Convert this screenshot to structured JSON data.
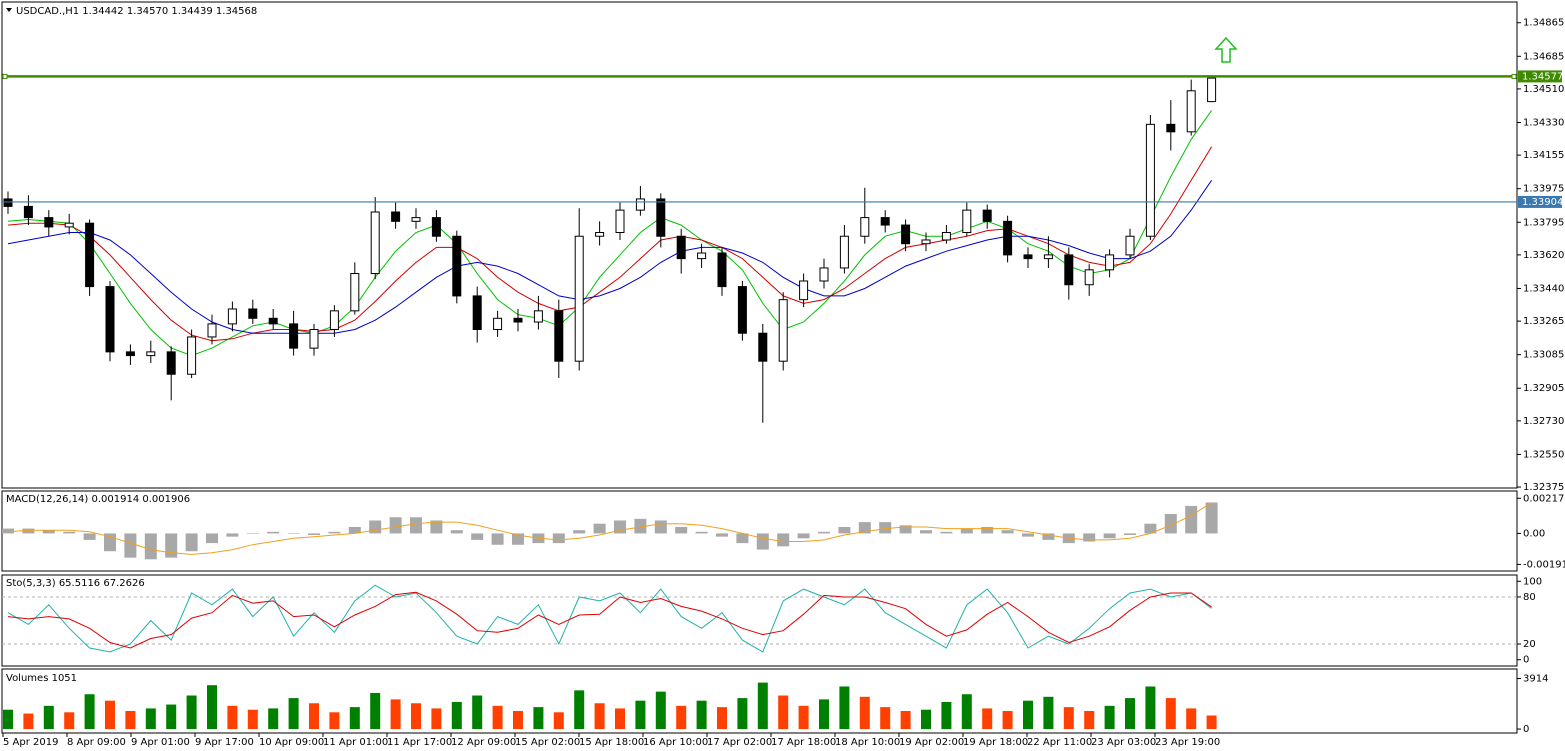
{
  "chart_data": [
    {
      "type": "candlestick",
      "title": "USDCAD.,H1  1.34442 1.34570 1.34439 1.34568",
      "x_labels": [
        "5 Apr 2019",
        "8 Apr 09:00",
        "9 Apr 01:00",
        "9 Apr 17:00",
        "10 Apr 09:00",
        "11 Apr 01:00",
        "11 Apr 17:00",
        "12 Apr 09:00",
        "15 Apr 02:00",
        "15 Apr 18:00",
        "16 Apr 10:00",
        "17 Apr 02:00",
        "17 Apr 18:00",
        "18 Apr 10:00",
        "19 Apr 02:00",
        "19 Apr 18:00",
        "22 Apr 11:00",
        "23 Apr 03:00",
        "23 Apr 19:00"
      ],
      "open": [
        1.3392,
        1.3388,
        1.3382,
        1.3377,
        1.3379,
        1.3345,
        1.331,
        1.3308,
        1.331,
        1.3298,
        1.3318,
        1.3325,
        1.3333,
        1.3328,
        1.3325,
        1.3312,
        1.3322,
        1.3332,
        1.3352,
        1.3385,
        1.338,
        1.3382,
        1.3372,
        1.334,
        1.3322,
        1.3328,
        1.3326,
        1.3332,
        1.3305,
        1.3372,
        1.3374,
        1.3386,
        1.3392,
        1.3372,
        1.336,
        1.3363,
        1.3345,
        1.332,
        1.3305,
        1.3338,
        1.3348,
        1.3355,
        1.3372,
        1.3382,
        1.3378,
        1.3368,
        1.337,
        1.3374,
        1.3386,
        1.338,
        1.3362,
        1.336,
        1.3362,
        1.3346,
        1.3354,
        1.3362,
        1.3372,
        1.3432,
        1.3428,
        1.34442
      ],
      "high": [
        1.3396,
        1.3394,
        1.3386,
        1.3384,
        1.3381,
        1.3348,
        1.3314,
        1.3316,
        1.3313,
        1.3322,
        1.333,
        1.3337,
        1.3338,
        1.3333,
        1.3332,
        1.3325,
        1.3335,
        1.3358,
        1.3393,
        1.339,
        1.3387,
        1.3386,
        1.3375,
        1.3345,
        1.3332,
        1.3333,
        1.334,
        1.3338,
        1.3387,
        1.338,
        1.339,
        1.3399,
        1.3395,
        1.3376,
        1.3368,
        1.3366,
        1.3348,
        1.3325,
        1.3342,
        1.3352,
        1.336,
        1.3378,
        1.3398,
        1.3386,
        1.3381,
        1.3374,
        1.3378,
        1.339,
        1.3389,
        1.3383,
        1.3366,
        1.3372,
        1.3366,
        1.3357,
        1.3365,
        1.3376,
        1.3437,
        1.3445,
        1.3456,
        1.3457
      ],
      "low": [
        1.3384,
        1.3378,
        1.3372,
        1.3373,
        1.334,
        1.3305,
        1.3303,
        1.3304,
        1.3284,
        1.3296,
        1.3314,
        1.3321,
        1.3325,
        1.3322,
        1.3308,
        1.3308,
        1.3318,
        1.333,
        1.3349,
        1.3376,
        1.3376,
        1.3369,
        1.3336,
        1.3315,
        1.3318,
        1.3321,
        1.3322,
        1.3296,
        1.33,
        1.3367,
        1.337,
        1.3383,
        1.3366,
        1.3352,
        1.3355,
        1.334,
        1.3316,
        1.3272,
        1.33,
        1.3334,
        1.3344,
        1.3352,
        1.3368,
        1.3374,
        1.3364,
        1.3364,
        1.3368,
        1.3372,
        1.3376,
        1.3358,
        1.3355,
        1.3355,
        1.3338,
        1.334,
        1.335,
        1.336,
        1.337,
        1.3418,
        1.3426,
        1.34439
      ],
      "close": [
        1.3388,
        1.3382,
        1.3377,
        1.3379,
        1.3345,
        1.331,
        1.3308,
        1.331,
        1.3298,
        1.3318,
        1.3325,
        1.3333,
        1.3328,
        1.3325,
        1.3312,
        1.3322,
        1.3332,
        1.3352,
        1.3385,
        1.338,
        1.3382,
        1.3372,
        1.334,
        1.3322,
        1.3328,
        1.3326,
        1.3332,
        1.3305,
        1.3372,
        1.3374,
        1.3386,
        1.3392,
        1.3372,
        1.336,
        1.3363,
        1.3345,
        1.332,
        1.3305,
        1.3338,
        1.3348,
        1.3355,
        1.3372,
        1.3382,
        1.3378,
        1.3368,
        1.337,
        1.3374,
        1.3386,
        1.338,
        1.3362,
        1.336,
        1.3362,
        1.3346,
        1.3354,
        1.3362,
        1.3372,
        1.3432,
        1.3428,
        1.345,
        1.34568
      ],
      "up_color": "#ffffff",
      "down_color": "#000000",
      "series": [
        {
          "color": "#00c000",
          "values": [
            1.338,
            1.3381,
            1.338,
            1.3379,
            1.3368,
            1.3352,
            1.3336,
            1.3322,
            1.3312,
            1.3308,
            1.3312,
            1.3318,
            1.3324,
            1.3326,
            1.3322,
            1.332,
            1.3324,
            1.3334,
            1.335,
            1.3364,
            1.3374,
            1.3378,
            1.3368,
            1.3352,
            1.3338,
            1.333,
            1.3328,
            1.3324,
            1.3334,
            1.335,
            1.3362,
            1.3374,
            1.3382,
            1.3378,
            1.337,
            1.3364,
            1.3354,
            1.3336,
            1.3322,
            1.3326,
            1.3336,
            1.3348,
            1.3362,
            1.3372,
            1.3375,
            1.3372,
            1.3372,
            1.3376,
            1.338,
            1.3376,
            1.3368,
            1.3364,
            1.3356,
            1.3352,
            1.3354,
            1.336,
            1.3382,
            1.3404,
            1.3424,
            1.34395
          ]
        },
        {
          "color": "#d00000",
          "values": [
            1.3378,
            1.3379,
            1.3379,
            1.3378,
            1.3372,
            1.3362,
            1.335,
            1.3338,
            1.3327,
            1.3319,
            1.3316,
            1.3317,
            1.332,
            1.3322,
            1.3322,
            1.3321,
            1.3322,
            1.3327,
            1.3337,
            1.3348,
            1.3358,
            1.3366,
            1.3366,
            1.336,
            1.335,
            1.3342,
            1.3336,
            1.3332,
            1.3334,
            1.3342,
            1.335,
            1.336,
            1.337,
            1.3372,
            1.337,
            1.3366,
            1.336,
            1.335,
            1.334,
            1.3336,
            1.3338,
            1.3344,
            1.3352,
            1.336,
            1.3366,
            1.3368,
            1.337,
            1.3372,
            1.3375,
            1.3376,
            1.3372,
            1.3368,
            1.3362,
            1.3358,
            1.3356,
            1.3358,
            1.3368,
            1.3384,
            1.3402,
            1.342
          ]
        },
        {
          "color": "#0000c8",
          "values": [
            1.3368,
            1.337,
            1.3372,
            1.3374,
            1.3374,
            1.337,
            1.3362,
            1.3352,
            1.3342,
            1.3333,
            1.3326,
            1.3322,
            1.332,
            1.332,
            1.332,
            1.332,
            1.332,
            1.3322,
            1.3327,
            1.3334,
            1.3342,
            1.335,
            1.3356,
            1.3358,
            1.3356,
            1.3352,
            1.3346,
            1.334,
            1.3338,
            1.334,
            1.3344,
            1.335,
            1.3358,
            1.3364,
            1.3366,
            1.3366,
            1.3363,
            1.3358,
            1.335,
            1.3344,
            1.334,
            1.334,
            1.3344,
            1.335,
            1.3356,
            1.336,
            1.3364,
            1.3367,
            1.337,
            1.3372,
            1.3372,
            1.337,
            1.3367,
            1.3363,
            1.336,
            1.336,
            1.3364,
            1.3372,
            1.3386,
            1.3402
          ]
        }
      ],
      "hlines": [
        {
          "value": 1.34577,
          "color": "#3f8a00"
        },
        {
          "value": 1.33904,
          "color": "#3a78b0"
        }
      ],
      "ylim": [
        1.3237,
        1.3496
      ],
      "yticks": [
        1.34865,
        1.34685,
        {
          "value": 1.3451,
          "label": "1.34510"
        },
        {
          "value": 1.3433,
          "label": "1.34330"
        },
        1.34155,
        1.33975,
        1.33795,
        {
          "value": 1.3362,
          "label": "1.33620"
        },
        {
          "value": 1.3344,
          "label": "1.33440"
        },
        1.33265,
        1.33085,
        1.32905,
        {
          "value": 1.3273,
          "label": "1.32730"
        },
        {
          "value": 1.3255,
          "label": "1.32550"
        },
        1.32375
      ]
    },
    {
      "type": "macd",
      "title": "MACD(12,26,14) 0.001914 0.001906",
      "bar_color": "#a8a8a8",
      "line_color": "#f0a020",
      "values": [
        0.0003,
        0.0003,
        0.0002,
        0.0001,
        -0.0004,
        -0.0011,
        -0.0015,
        -0.0016,
        -0.0015,
        -0.0011,
        -0.0006,
        -0.0002,
        0.0,
        0.0001,
        0.0,
        -0.0001,
        0.0001,
        0.0004,
        0.0008,
        0.001,
        0.001,
        0.0008,
        0.0002,
        -0.0004,
        -0.0007,
        -0.0007,
        -0.0006,
        -0.0006,
        0.0002,
        0.0006,
        0.0008,
        0.0009,
        0.0008,
        0.0004,
        0.0001,
        -0.0002,
        -0.0006,
        -0.001,
        -0.0008,
        -0.0003,
        0.0001,
        0.0004,
        0.0007,
        0.0007,
        0.0005,
        0.0002,
        0.0001,
        0.0003,
        0.0004,
        0.0002,
        -0.0002,
        -0.0004,
        -0.0006,
        -0.0005,
        -0.0003,
        -0.0001,
        0.0006,
        0.0012,
        0.0017,
        0.001914
      ],
      "signal": [
        0.0001,
        0.0002,
        0.0002,
        0.0002,
        0.0001,
        -0.0002,
        -0.0006,
        -0.001,
        -0.0012,
        -0.0013,
        -0.0012,
        -0.001,
        -0.0007,
        -0.0005,
        -0.0003,
        -0.0002,
        -0.0001,
        0.0,
        0.0002,
        0.0004,
        0.0006,
        0.0007,
        0.0007,
        0.0005,
        0.0002,
        -0.0001,
        -0.0003,
        -0.0004,
        -0.0003,
        -0.0001,
        0.0002,
        0.0004,
        0.0006,
        0.0006,
        0.0005,
        0.0003,
        0.0,
        -0.0003,
        -0.0005,
        -0.0005,
        -0.0004,
        -0.0001,
        0.0001,
        0.0003,
        0.0004,
        0.0004,
        0.0003,
        0.0003,
        0.0003,
        0.0003,
        0.0001,
        -0.0001,
        -0.0003,
        -0.0004,
        -0.0004,
        -0.0003,
        0.0,
        0.0005,
        0.0011,
        0.001906
      ],
      "ylim": [
        -0.0022,
        0.0025
      ],
      "yticks": [
        0.002174,
        {
          "value": 0,
          "label": "0.00"
        },
        -0.001916
      ]
    },
    {
      "type": "stochastic",
      "title": "Sto(5,3,3) 65.5116 67.2626",
      "levels": [
        80,
        20
      ],
      "series": [
        {
          "color": "#20b2aa",
          "values": [
            60,
            45,
            70,
            40,
            15,
            10,
            20,
            50,
            25,
            85,
            70,
            90,
            55,
            80,
            30,
            60,
            35,
            75,
            95,
            80,
            85,
            60,
            30,
            20,
            55,
            45,
            70,
            20,
            80,
            75,
            85,
            60,
            90,
            55,
            40,
            60,
            25,
            10,
            75,
            90,
            80,
            70,
            90,
            60,
            45,
            30,
            15,
            70,
            90,
            60,
            15,
            30,
            20,
            40,
            65,
            85,
            90,
            80,
            85,
            65.5116
          ]
        },
        {
          "color": "#e00000",
          "values": [
            55,
            52,
            55,
            52,
            40,
            22,
            15,
            27,
            32,
            53,
            60,
            82,
            72,
            75,
            55,
            57,
            42,
            57,
            68,
            83,
            86,
            75,
            58,
            37,
            35,
            40,
            57,
            45,
            57,
            58,
            80,
            73,
            78,
            68,
            62,
            52,
            40,
            32,
            37,
            58,
            82,
            80,
            80,
            73,
            65,
            45,
            30,
            38,
            58,
            73,
            55,
            35,
            22,
            30,
            42,
            63,
            80,
            85,
            85,
            67.2626
          ]
        }
      ],
      "ylim": [
        -8,
        108
      ],
      "yticks": [
        100,
        80,
        20,
        0
      ]
    },
    {
      "type": "volume",
      "title": "Volumes 1051",
      "up_color": "#008000",
      "down_color": "#ff4000",
      "values": [
        1500,
        1200,
        1800,
        1300,
        2700,
        2200,
        1400,
        1600,
        1900,
        2600,
        3400,
        1800,
        1500,
        1600,
        2400,
        2000,
        1300,
        1700,
        2800,
        2300,
        2000,
        1600,
        2100,
        2600,
        1800,
        1400,
        1700,
        1300,
        3000,
        2000,
        1600,
        2200,
        2900,
        1800,
        2200,
        1700,
        2400,
        3600,
        2600,
        1800,
        2300,
        3300,
        2500,
        1700,
        1400,
        1500,
        2100,
        2700,
        1600,
        1400,
        2200,
        2500,
        1700,
        1400,
        1800,
        2400,
        3300,
        2400,
        1600,
        1051
      ],
      "ylim": [
        -150,
        4500
      ],
      "yticks": [
        3914,
        0
      ]
    }
  ]
}
